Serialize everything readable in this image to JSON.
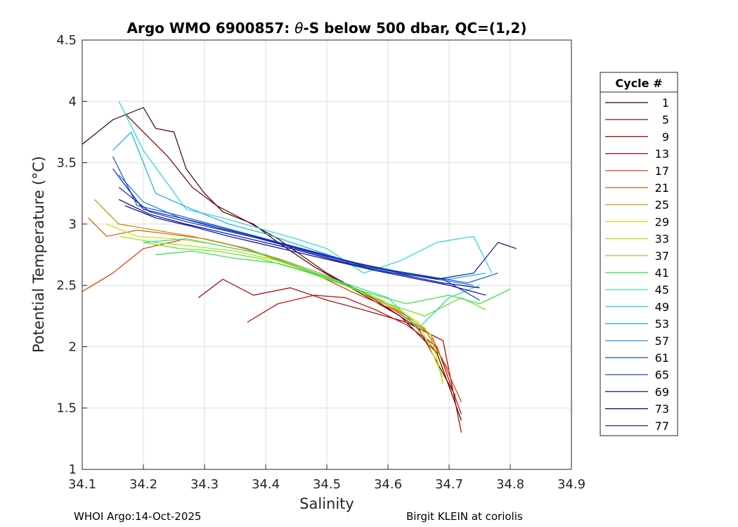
{
  "chart_data": {
    "type": "line",
    "title_prefix": "Argo WMO 6900857: ",
    "title_symbol": "θ",
    "title_suffix": "-S below 500 dbar,  QC=(1,2)",
    "xlabel": "Salinity",
    "ylabel": "Potential Temperature (°C)",
    "xlim": [
      34.1,
      34.9
    ],
    "ylim": [
      1,
      4.5
    ],
    "xticks": [
      "34.1",
      "34.2",
      "34.3",
      "34.4",
      "34.5",
      "34.6",
      "34.7",
      "34.8",
      "34.9"
    ],
    "yticks": [
      "1",
      "1.5",
      "2",
      "2.5",
      "3",
      "3.5",
      "4",
      "4.5"
    ],
    "grid": true,
    "legend_title": "Cycle #",
    "legend_position": "right-outside",
    "series": [
      {
        "name": "1",
        "color": "#3b0000",
        "x": [
          34.1,
          34.15,
          34.2,
          34.22,
          34.25,
          34.27,
          34.3,
          34.33,
          34.38,
          34.42,
          34.48,
          34.55,
          34.62,
          34.68,
          34.72
        ],
        "y": [
          3.65,
          3.85,
          3.95,
          3.78,
          3.75,
          3.45,
          3.25,
          3.1,
          3.0,
          2.85,
          2.65,
          2.45,
          2.25,
          1.95,
          1.4
        ]
      },
      {
        "name": "5",
        "color": "#6e0000",
        "x": [
          34.17,
          34.2,
          34.24,
          34.28,
          34.32,
          34.37,
          34.42,
          34.5,
          34.58,
          34.65,
          34.71
        ],
        "y": [
          3.9,
          3.75,
          3.55,
          3.3,
          3.15,
          3.02,
          2.88,
          2.6,
          2.38,
          2.15,
          1.6
        ]
      },
      {
        "name": "9",
        "color": "#a00000",
        "x": [
          34.29,
          34.33,
          34.38,
          34.44,
          34.5,
          34.56,
          34.63,
          34.69,
          34.72
        ],
        "y": [
          2.4,
          2.55,
          2.42,
          2.48,
          2.38,
          2.3,
          2.2,
          2.05,
          1.3
        ]
      },
      {
        "name": "13",
        "color": "#c80000",
        "x": [
          34.37,
          34.42,
          34.48,
          34.53,
          34.58,
          34.63,
          34.68,
          34.72
        ],
        "y": [
          2.2,
          2.35,
          2.42,
          2.4,
          2.3,
          2.18,
          2.0,
          1.45
        ]
      },
      {
        "name": "17",
        "color": "#e83000",
        "x": [
          34.1,
          34.15,
          34.2,
          34.27,
          34.33,
          34.4,
          34.47,
          34.54,
          34.61,
          34.67,
          34.72
        ],
        "y": [
          2.45,
          2.6,
          2.8,
          2.88,
          2.82,
          2.75,
          2.62,
          2.45,
          2.3,
          2.1,
          1.55
        ]
      },
      {
        "name": "21",
        "color": "#d06000",
        "x": [
          34.11,
          34.14,
          34.19,
          34.24,
          34.3,
          34.37,
          34.45,
          34.53,
          34.6,
          34.66,
          34.7
        ],
        "y": [
          3.05,
          2.9,
          2.95,
          2.92,
          2.88,
          2.8,
          2.65,
          2.5,
          2.35,
          2.15,
          1.8
        ]
      },
      {
        "name": "25",
        "color": "#c09000",
        "x": [
          34.12,
          34.16,
          34.22,
          34.28,
          34.35,
          34.42,
          34.5,
          34.57,
          34.63,
          34.69
        ],
        "y": [
          3.2,
          3.0,
          2.95,
          2.9,
          2.82,
          2.72,
          2.58,
          2.42,
          2.25,
          1.9
        ]
      },
      {
        "name": "29",
        "color": "#d8d800",
        "x": [
          34.14,
          34.19,
          34.25,
          34.31,
          34.38,
          34.45,
          34.52,
          34.59,
          34.65,
          34.69
        ],
        "y": [
          3.0,
          2.9,
          2.88,
          2.84,
          2.77,
          2.65,
          2.52,
          2.38,
          2.2,
          1.75
        ]
      },
      {
        "name": "33",
        "color": "#a0e000",
        "x": [
          34.16,
          34.22,
          34.28,
          34.35,
          34.42,
          34.49,
          34.56,
          34.62,
          34.67,
          34.69
        ],
        "y": [
          2.9,
          2.85,
          2.82,
          2.78,
          2.7,
          2.58,
          2.45,
          2.3,
          2.1,
          1.7
        ]
      },
      {
        "name": "37",
        "color": "#60e020",
        "x": [
          34.2,
          34.26,
          34.32,
          34.39,
          34.46,
          34.53,
          34.6,
          34.66,
          34.72,
          34.76
        ],
        "y": [
          2.85,
          2.8,
          2.78,
          2.72,
          2.62,
          2.5,
          2.35,
          2.25,
          2.4,
          2.3
        ]
      },
      {
        "name": "41",
        "color": "#30e040",
        "x": [
          34.22,
          34.28,
          34.35,
          34.42,
          34.49,
          34.56,
          34.63,
          34.7,
          34.75,
          34.8
        ],
        "y": [
          2.75,
          2.78,
          2.72,
          2.68,
          2.58,
          2.45,
          2.35,
          2.42,
          2.35,
          2.47
        ]
      },
      {
        "name": "45",
        "color": "#20e0a0",
        "x": [
          34.2,
          34.27,
          34.33,
          34.4,
          34.47,
          34.54,
          34.6,
          34.65,
          34.7,
          34.75
        ],
        "y": [
          2.85,
          2.88,
          2.82,
          2.75,
          2.62,
          2.5,
          2.4,
          2.15,
          2.4,
          2.5
        ]
      },
      {
        "name": "49",
        "color": "#20d8d8",
        "x": [
          34.16,
          34.2,
          34.27,
          34.33,
          34.4,
          34.45,
          34.5,
          34.56,
          34.62,
          34.68,
          34.74,
          34.77
        ],
        "y": [
          4.0,
          3.6,
          3.12,
          3.05,
          2.95,
          2.88,
          2.8,
          2.6,
          2.7,
          2.85,
          2.9,
          2.6
        ]
      },
      {
        "name": "53",
        "color": "#10b0f0",
        "x": [
          34.15,
          34.18,
          34.22,
          34.28,
          34.34,
          34.4,
          34.46,
          34.52,
          34.58,
          34.64,
          34.7,
          34.76
        ],
        "y": [
          3.6,
          3.75,
          3.25,
          3.12,
          3.0,
          2.92,
          2.82,
          2.72,
          2.62,
          2.58,
          2.55,
          2.6
        ]
      },
      {
        "name": "57",
        "color": "#1080f0",
        "x": [
          34.16,
          34.2,
          34.26,
          34.32,
          34.38,
          34.44,
          34.5,
          34.56,
          34.62,
          34.68,
          34.74
        ],
        "y": [
          3.4,
          3.18,
          3.05,
          2.98,
          2.9,
          2.82,
          2.75,
          2.66,
          2.6,
          2.55,
          2.5
        ]
      },
      {
        "name": "61",
        "color": "#1050e0",
        "x": [
          34.15,
          34.19,
          34.25,
          34.31,
          34.37,
          34.43,
          34.49,
          34.55,
          34.61,
          34.67,
          34.73,
          34.78
        ],
        "y": [
          3.55,
          3.15,
          3.08,
          3.0,
          2.92,
          2.84,
          2.76,
          2.68,
          2.62,
          2.57,
          2.52,
          2.6
        ]
      },
      {
        "name": "65",
        "color": "#1030c0",
        "x": [
          34.16,
          34.21,
          34.27,
          34.33,
          34.39,
          34.45,
          34.51,
          34.57,
          34.63,
          34.69,
          34.75
        ],
        "y": [
          3.3,
          3.1,
          3.02,
          2.95,
          2.88,
          2.8,
          2.72,
          2.65,
          2.6,
          2.55,
          2.38
        ]
      },
      {
        "name": "69",
        "color": "#0818a0",
        "x": [
          34.15,
          34.2,
          34.26,
          34.32,
          34.38,
          34.44,
          34.5,
          34.56,
          34.62,
          34.68,
          34.74,
          34.78,
          34.81
        ],
        "y": [
          3.45,
          3.12,
          3.05,
          2.97,
          2.9,
          2.82,
          2.74,
          2.67,
          2.6,
          2.55,
          2.6,
          2.85,
          2.8
        ]
      },
      {
        "name": "73",
        "color": "#000878",
        "x": [
          34.16,
          34.21,
          34.27,
          34.33,
          34.39,
          34.45,
          34.51,
          34.57,
          34.63,
          34.69,
          34.75
        ],
        "y": [
          3.2,
          3.08,
          3.0,
          2.93,
          2.86,
          2.79,
          2.71,
          2.64,
          2.58,
          2.52,
          2.48
        ]
      },
      {
        "name": "77",
        "color": "#0000a8",
        "x": [
          34.17,
          34.22,
          34.28,
          34.34,
          34.4,
          34.46,
          34.52,
          34.58,
          34.64,
          34.7,
          34.76
        ],
        "y": [
          3.15,
          3.05,
          2.98,
          2.9,
          2.83,
          2.76,
          2.69,
          2.62,
          2.56,
          2.5,
          2.42
        ]
      }
    ]
  },
  "footer": {
    "left": "WHOI Argo:14-Oct-2025",
    "right": "Birgit KLEIN at coriolis"
  }
}
